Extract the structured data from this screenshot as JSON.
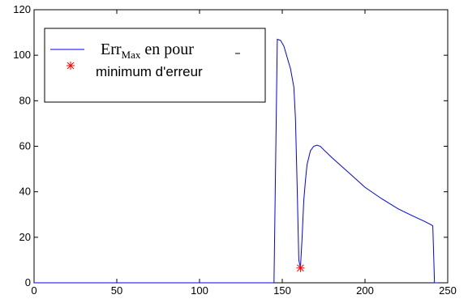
{
  "chart_data": {
    "type": "line",
    "xlim": [
      0,
      250
    ],
    "ylim": [
      0,
      120
    ],
    "x_ticks": [
      "0",
      "50",
      "100",
      "150",
      "200",
      "250"
    ],
    "y_ticks": [
      "0",
      "20",
      "40",
      "60",
      "80",
      "100",
      "120"
    ],
    "grid": false,
    "legend_placement": "top-left",
    "legend": {
      "line_label_main": "Err",
      "line_label_sub": "Max",
      "line_label_rest": " en pour",
      "marker_label": "minimum d'erreur"
    },
    "series": [
      {
        "style": "line",
        "color": "#0000ff",
        "points": [
          [
            0,
            0
          ],
          [
            145,
            0
          ],
          [
            147,
            107
          ],
          [
            149,
            106.5
          ],
          [
            151,
            104
          ],
          [
            153,
            99
          ],
          [
            155,
            94
          ],
          [
            157,
            86
          ],
          [
            158,
            72
          ],
          [
            159,
            42
          ],
          [
            160,
            10
          ],
          [
            161,
            6.5
          ],
          [
            162,
            20
          ],
          [
            163,
            36
          ],
          [
            164,
            45
          ],
          [
            165,
            52
          ],
          [
            167,
            58
          ],
          [
            169,
            60
          ],
          [
            171,
            60.5
          ],
          [
            173,
            60
          ],
          [
            175,
            58.5
          ],
          [
            180,
            55
          ],
          [
            190,
            48.5
          ],
          [
            200,
            42
          ],
          [
            210,
            37
          ],
          [
            220,
            32.5
          ],
          [
            230,
            29
          ],
          [
            236,
            27
          ],
          [
            240,
            25.5
          ],
          [
            241,
            25
          ],
          [
            242,
            0
          ],
          [
            244,
            0
          ]
        ]
      },
      {
        "style": "marker",
        "color": "#ff0000",
        "points": [
          [
            161,
            6.5
          ]
        ]
      }
    ]
  }
}
